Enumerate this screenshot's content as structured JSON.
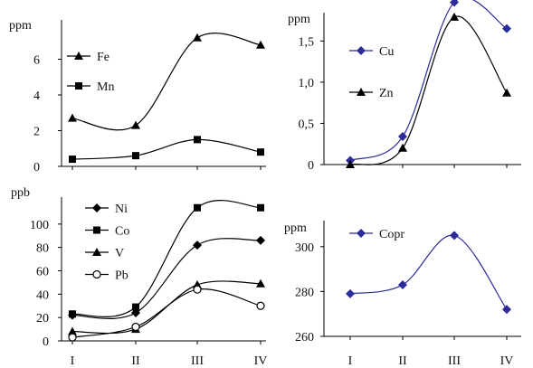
{
  "figure": {
    "categories": [
      "I",
      "II",
      "III",
      "IV"
    ]
  },
  "chart_data": [
    {
      "type": "line",
      "ylabel": "ppm",
      "ylim": [
        0,
        8
      ],
      "yticks": [
        "0",
        "2",
        "4",
        "6"
      ],
      "x": [
        "I",
        "II",
        "III",
        "IV"
      ],
      "legend": "top-left",
      "series": [
        {
          "name": "Fe",
          "marker": "triangle",
          "color": "#000000",
          "values": [
            2.7,
            2.3,
            7.2,
            6.8
          ]
        },
        {
          "name": "Mn",
          "marker": "square",
          "color": "#000000",
          "values": [
            0.4,
            0.6,
            1.5,
            0.8
          ]
        }
      ]
    },
    {
      "type": "line",
      "ylabel": "ppm",
      "ylim": [
        0,
        1.8
      ],
      "yticks": [
        "0",
        "0,5",
        "1,0",
        "1,5"
      ],
      "x": [
        "I",
        "II",
        "III",
        "IV"
      ],
      "legend": "top-left",
      "series": [
        {
          "name": "Cu",
          "marker": "diamond",
          "color": "#2b2b9a",
          "values": [
            0.05,
            0.34,
            1.97,
            1.65
          ]
        },
        {
          "name": "Zn",
          "marker": "triangle",
          "color": "#000000",
          "values": [
            0.0,
            0.2,
            1.79,
            0.87
          ]
        }
      ]
    },
    {
      "type": "line",
      "ylabel": "ppb",
      "ylim": [
        0,
        120
      ],
      "yticks": [
        "0",
        "20",
        "40",
        "60",
        "80",
        "100"
      ],
      "x": [
        "I",
        "II",
        "III",
        "IV"
      ],
      "legend": "top-left",
      "series": [
        {
          "name": "Ni",
          "marker": "diamond",
          "color": "#000000",
          "values": [
            22,
            24,
            82,
            86
          ]
        },
        {
          "name": "Co",
          "marker": "square",
          "color": "#000000",
          "values": [
            23,
            29,
            114,
            114
          ]
        },
        {
          "name": "V",
          "marker": "triangle",
          "color": "#000000",
          "values": [
            8,
            10,
            48,
            49
          ]
        },
        {
          "name": "Pb",
          "marker": "circle-open",
          "color": "#000000",
          "values": [
            3,
            12,
            44,
            30
          ]
        }
      ]
    },
    {
      "type": "line",
      "ylabel": "ppm",
      "ylim": [
        260,
        310
      ],
      "yticks": [
        "260",
        "280",
        "300"
      ],
      "x": [
        "I",
        "II",
        "III",
        "IV"
      ],
      "legend": "top-left",
      "series": [
        {
          "name": "Copr",
          "marker": "diamond",
          "color": "#2b2b9a",
          "values": [
            279,
            283,
            305,
            272
          ]
        }
      ]
    }
  ]
}
